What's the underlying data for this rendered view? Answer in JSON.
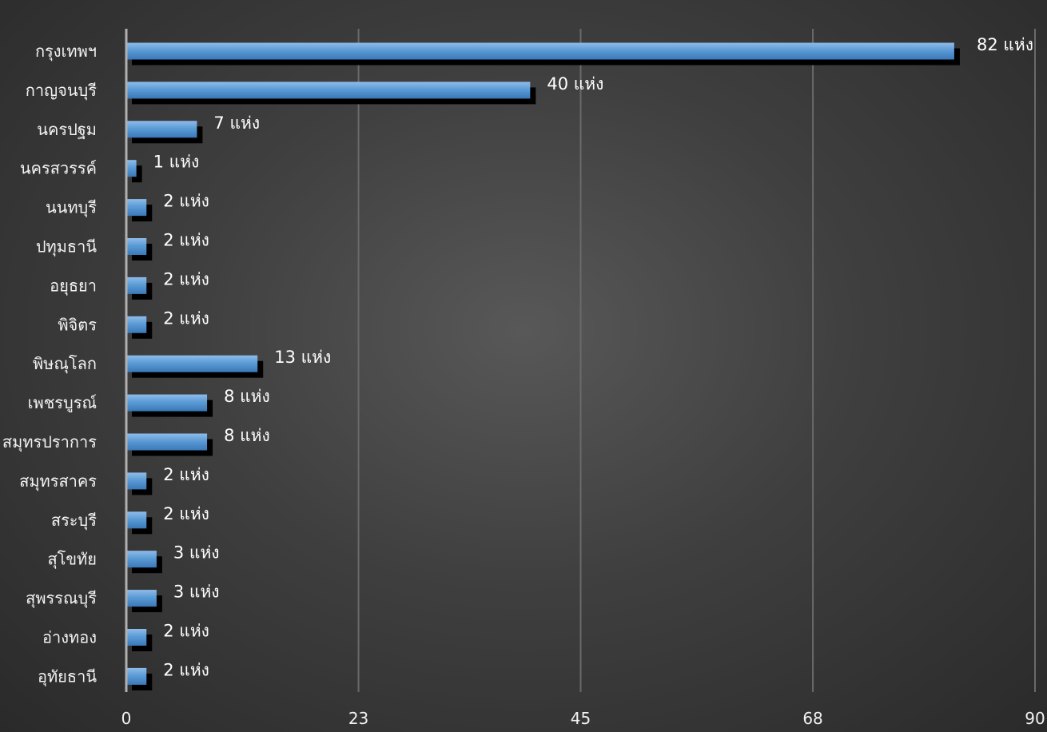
{
  "chart_data": {
    "type": "bar",
    "orientation": "horizontal",
    "categories": [
      "กรุงเทพฯ",
      "กาญจนบุรี",
      "นครปฐม",
      "นครสวรรค์",
      "นนทบุรี",
      "ปทุมธานี",
      "อยุธยา",
      "พิจิตร",
      "พิษณุโลก",
      "เพชรบูรณ์",
      "สมุทรปราการ",
      "สมุทรสาคร",
      "สระบุรี",
      "สุโขทัย",
      "สุพรรณบุรี",
      "อ่างทอง",
      "อุทัยธานี"
    ],
    "values": [
      82,
      40,
      7,
      1,
      2,
      2,
      2,
      2,
      13,
      8,
      8,
      2,
      2,
      3,
      3,
      2,
      2
    ],
    "data_labels": [
      "82 แห่ง",
      "40 แห่ง",
      "7 แห่ง",
      "1 แห่ง",
      "2 แห่ง",
      "2 แห่ง",
      "2 แห่ง",
      "2 แห่ง",
      "13 แห่ง",
      "8 แห่ง",
      "8 แห่ง",
      "2 แห่ง",
      "2 แห่ง",
      "3 แห่ง",
      "3 แห่ง",
      "2 แห่ง",
      "2 แห่ง"
    ],
    "x_ticks": [
      0,
      23,
      45,
      68,
      90
    ],
    "xlim": [
      0,
      90
    ],
    "title": "",
    "xlabel": "",
    "ylabel": "",
    "grid": true,
    "legend": "none",
    "colors": {
      "bar_top": "#8fbcea",
      "bar_mid": "#5b9bd5",
      "bar_bottom": "#3a78b8",
      "bar_shadow": "#000000",
      "gridline": "#6a6a6a",
      "axis_line": "#b0b0b0"
    }
  }
}
